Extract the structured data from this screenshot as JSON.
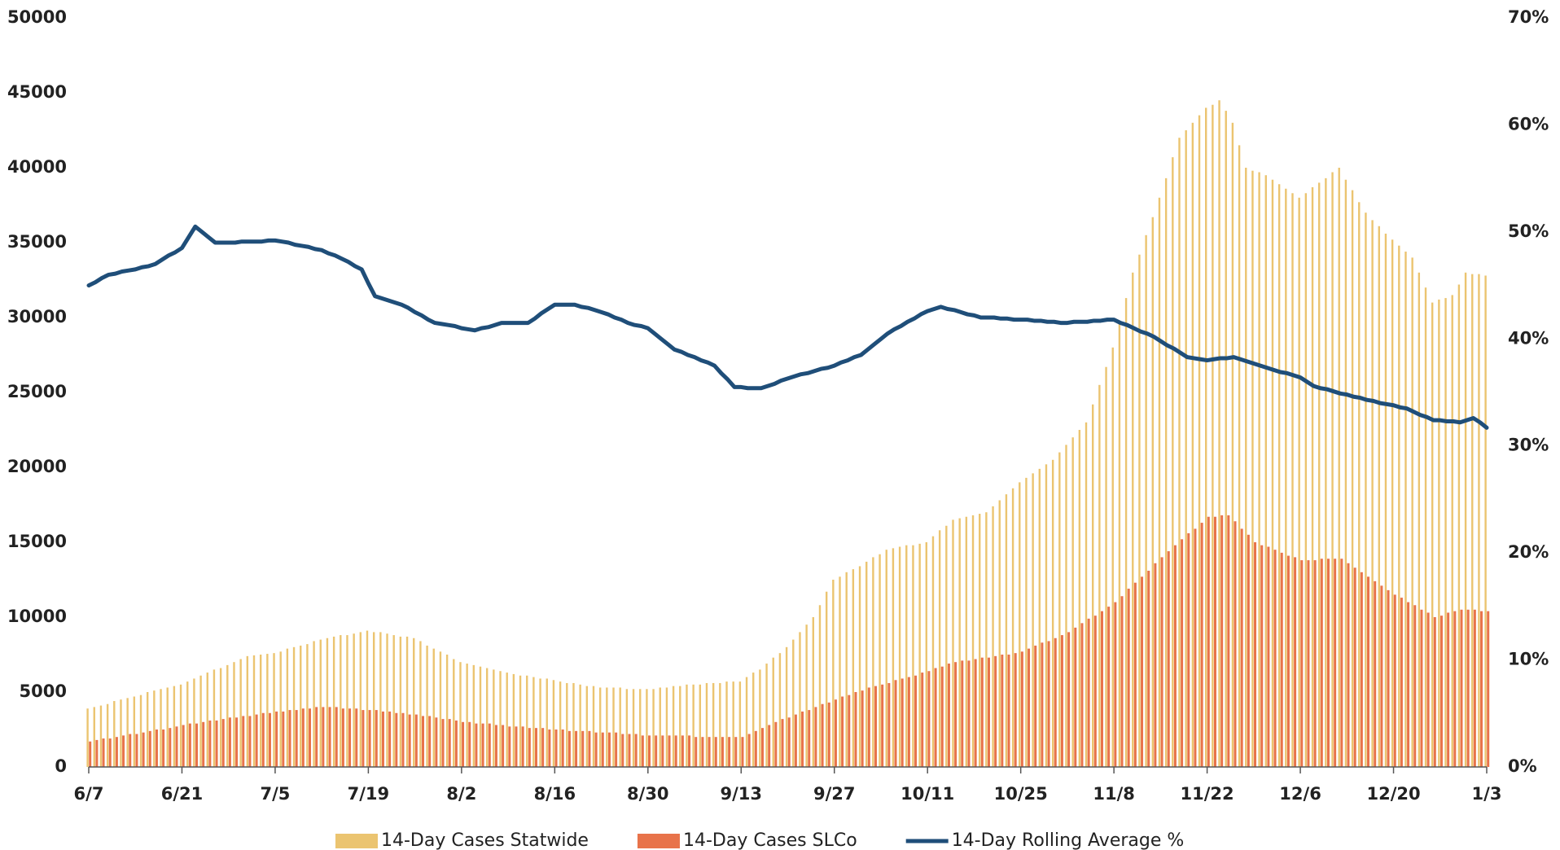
{
  "chart_data": {
    "type": "bar",
    "categories": [
      "6/7",
      null,
      null,
      null,
      null,
      null,
      null,
      null,
      null,
      null,
      null,
      null,
      null,
      null,
      "6/21",
      null,
      null,
      null,
      null,
      null,
      null,
      null,
      null,
      null,
      null,
      null,
      null,
      null,
      "7/5",
      null,
      null,
      null,
      null,
      null,
      null,
      null,
      null,
      null,
      null,
      null,
      null,
      null,
      "7/19",
      null,
      null,
      null,
      null,
      null,
      null,
      null,
      null,
      null,
      null,
      null,
      null,
      null,
      "8/2",
      null,
      null,
      null,
      null,
      null,
      null,
      null,
      null,
      null,
      null,
      null,
      null,
      null,
      "8/16",
      null,
      null,
      null,
      null,
      null,
      null,
      null,
      null,
      null,
      null,
      null,
      null,
      null,
      "8/30",
      null,
      null,
      null,
      null,
      null,
      null,
      null,
      null,
      null,
      null,
      null,
      null,
      null,
      "9/13",
      null,
      null,
      null,
      null,
      null,
      null,
      null,
      null,
      null,
      null,
      null,
      null,
      null,
      "9/27",
      null,
      null,
      null,
      null,
      null,
      null,
      null,
      null,
      null,
      null,
      null,
      null,
      null,
      "10/11",
      null,
      null,
      null,
      null,
      null,
      null,
      null,
      null,
      null,
      null,
      null,
      null,
      null,
      "10/25",
      null,
      null,
      null,
      null,
      null,
      null,
      null,
      null,
      null,
      null,
      null,
      null,
      null,
      "11/8",
      null,
      null,
      null,
      null,
      null,
      null,
      null,
      null,
      null,
      null,
      null,
      null,
      null,
      "11/22",
      null,
      null,
      null,
      null,
      null,
      null,
      null,
      null,
      null,
      null,
      null,
      null,
      null,
      "12/6",
      null,
      null,
      null,
      null,
      null,
      null,
      null,
      null,
      null,
      null,
      null,
      null,
      null,
      "12/20",
      null,
      null,
      null,
      null,
      null,
      null,
      null,
      null,
      null,
      null,
      null,
      null,
      null,
      "1/3"
    ],
    "series": [
      {
        "name": "14-Day Cases Statwide",
        "color": "#ebc470",
        "type": "bar",
        "values": [
          3900,
          4000,
          4100,
          4200,
          4400,
          4500,
          4600,
          4700,
          4800,
          5000,
          5100,
          5200,
          5300,
          5400,
          5500,
          5700,
          5900,
          6100,
          6300,
          6500,
          6600,
          6800,
          7000,
          7200,
          7400,
          7450,
          7500,
          7550,
          7600,
          7700,
          7900,
          8000,
          8100,
          8200,
          8400,
          8500,
          8600,
          8700,
          8800,
          8800,
          8900,
          9000,
          9100,
          9000,
          9000,
          8900,
          8800,
          8700,
          8700,
          8600,
          8400,
          8100,
          7900,
          7700,
          7500,
          7200,
          7000,
          6900,
          6800,
          6700,
          6600,
          6500,
          6400,
          6300,
          6200,
          6100,
          6100,
          6000,
          5900,
          5900,
          5800,
          5700,
          5600,
          5600,
          5500,
          5400,
          5400,
          5300,
          5300,
          5300,
          5300,
          5200,
          5200,
          5200,
          5200,
          5200,
          5300,
          5300,
          5400,
          5400,
          5500,
          5500,
          5500,
          5600,
          5600,
          5600,
          5700,
          5700,
          5700,
          6000,
          6300,
          6500,
          6900,
          7300,
          7600,
          8000,
          8500,
          9000,
          9500,
          10000,
          10800,
          11700,
          12500,
          12700,
          13000,
          13200,
          13400,
          13700,
          14000,
          14200,
          14500,
          14600,
          14700,
          14800,
          14800,
          14900,
          15000,
          15400,
          15800,
          16100,
          16500,
          16600,
          16700,
          16800,
          16900,
          17000,
          17400,
          17800,
          18200,
          18600,
          19000,
          19300,
          19600,
          19900,
          20200,
          20500,
          21000,
          21500,
          22000,
          22500,
          23000,
          24200,
          25500,
          26700,
          28000,
          29700,
          31300,
          33000,
          34200,
          35500,
          36700,
          38000,
          39300,
          40700,
          42000,
          42500,
          43000,
          43500,
          44000,
          44200,
          44500,
          43800,
          43000,
          41500,
          40000,
          39800,
          39700,
          39500,
          39200,
          38900,
          38600,
          38300,
          38000,
          38300,
          38700,
          39000,
          39300,
          39700,
          40000,
          39200,
          38500,
          37700,
          37000,
          36500,
          36100,
          35600,
          35200,
          34800,
          34400,
          34000,
          33000,
          32000,
          31000,
          31200,
          31300,
          31500,
          32200,
          33000,
          32900,
          32900,
          32800
        ]
      },
      {
        "name": "14-Day Cases SLCo",
        "color": "#e8734a",
        "type": "bar",
        "values": [
          1700,
          1800,
          1900,
          1900,
          2000,
          2100,
          2200,
          2200,
          2300,
          2400,
          2500,
          2500,
          2600,
          2700,
          2800,
          2900,
          2900,
          3000,
          3100,
          3100,
          3200,
          3300,
          3300,
          3400,
          3400,
          3500,
          3600,
          3600,
          3700,
          3700,
          3800,
          3800,
          3900,
          3900,
          4000,
          4000,
          4000,
          4000,
          3900,
          3900,
          3900,
          3800,
          3800,
          3800,
          3700,
          3700,
          3600,
          3600,
          3500,
          3500,
          3400,
          3400,
          3300,
          3200,
          3200,
          3100,
          3000,
          3000,
          2900,
          2900,
          2900,
          2800,
          2800,
          2700,
          2700,
          2700,
          2600,
          2600,
          2600,
          2500,
          2500,
          2500,
          2400,
          2400,
          2400,
          2400,
          2300,
          2300,
          2300,
          2300,
          2200,
          2200,
          2200,
          2100,
          2100,
          2100,
          2100,
          2100,
          2100,
          2100,
          2100,
          2000,
          2000,
          2000,
          2000,
          2000,
          2000,
          2000,
          2000,
          2200,
          2400,
          2600,
          2800,
          3000,
          3200,
          3300,
          3500,
          3700,
          3800,
          4000,
          4200,
          4300,
          4500,
          4700,
          4800,
          5000,
          5100,
          5300,
          5400,
          5500,
          5600,
          5800,
          5900,
          6000,
          6100,
          6300,
          6400,
          6600,
          6700,
          6900,
          7000,
          7100,
          7100,
          7200,
          7300,
          7300,
          7400,
          7500,
          7500,
          7600,
          7700,
          7900,
          8100,
          8300,
          8400,
          8600,
          8800,
          9000,
          9300,
          9600,
          9900,
          10100,
          10400,
          10700,
          11000,
          11400,
          11900,
          12300,
          12700,
          13100,
          13600,
          14000,
          14400,
          14800,
          15200,
          15600,
          15900,
          16300,
          16700,
          16700,
          16800,
          16800,
          16400,
          15900,
          15500,
          15000,
          14800,
          14700,
          14500,
          14300,
          14100,
          14000,
          13800,
          13800,
          13800,
          13900,
          13900,
          13900,
          13900,
          13600,
          13300,
          13000,
          12700,
          12400,
          12100,
          11800,
          11500,
          11300,
          11000,
          10800,
          10500,
          10300,
          10000,
          10100,
          10300,
          10400,
          10500,
          10500,
          10500,
          10400,
          10400
        ]
      },
      {
        "name": "14-Day Rolling Average %",
        "color": "#1f4e79",
        "type": "line",
        "axis": "y2",
        "values": [
          45,
          45.3,
          45.7,
          46,
          46.1,
          46.3,
          46.4,
          46.5,
          46.7,
          46.8,
          47,
          47.4,
          47.8,
          48.1,
          48.5,
          49.5,
          50.5,
          50,
          49.5,
          49,
          49,
          49,
          49,
          49.1,
          49.1,
          49.1,
          49.1,
          49.2,
          49.2,
          49.1,
          49,
          48.8,
          48.7,
          48.6,
          48.4,
          48.3,
          48,
          47.8,
          47.5,
          47.2,
          46.8,
          46.5,
          45.2,
          44,
          43.8,
          43.6,
          43.4,
          43.2,
          42.9,
          42.5,
          42.2,
          41.8,
          41.5,
          41.4,
          41.3,
          41.2,
          41,
          40.9,
          40.8,
          41,
          41.1,
          41.3,
          41.5,
          41.5,
          41.5,
          41.5,
          41.5,
          41.9,
          42.4,
          42.8,
          43.2,
          43.2,
          43.2,
          43.2,
          43,
          42.9,
          42.7,
          42.5,
          42.3,
          42,
          41.8,
          41.5,
          41.3,
          41.2,
          41,
          40.5,
          40,
          39.5,
          39,
          38.8,
          38.5,
          38.3,
          38,
          37.8,
          37.5,
          36.8,
          36.2,
          35.5,
          35.5,
          35.4,
          35.4,
          35.4,
          35.6,
          35.8,
          36.1,
          36.3,
          36.5,
          36.7,
          36.8,
          37,
          37.2,
          37.3,
          37.5,
          37.8,
          38,
          38.3,
          38.5,
          39,
          39.5,
          40,
          40.5,
          40.9,
          41.2,
          41.6,
          41.9,
          42.3,
          42.6,
          42.8,
          43,
          42.8,
          42.7,
          42.5,
          42.3,
          42.2,
          42,
          42,
          42,
          41.9,
          41.9,
          41.8,
          41.8,
          41.8,
          41.7,
          41.7,
          41.6,
          41.6,
          41.5,
          41.5,
          41.6,
          41.6,
          41.6,
          41.7,
          41.7,
          41.8,
          41.8,
          41.5,
          41.3,
          41,
          40.7,
          40.5,
          40.2,
          39.8,
          39.4,
          39.1,
          38.7,
          38.3,
          38.2,
          38.1,
          38,
          38.1,
          38.2,
          38.2,
          38.3,
          38.1,
          37.9,
          37.7,
          37.5,
          37.3,
          37.1,
          36.9,
          36.8,
          36.6,
          36.4,
          36,
          35.6,
          35.4,
          35.3,
          35.1,
          34.9,
          34.8,
          34.6,
          34.5,
          34.3,
          34.2,
          34,
          33.9,
          33.8,
          33.6,
          33.5,
          33.2,
          32.9,
          32.7,
          32.4,
          32.4,
          32.3,
          32.3,
          32.2,
          32.4,
          32.6,
          32.2,
          31.7
        ]
      }
    ],
    "ylim": [
      0,
      50000
    ],
    "yticks": [
      0,
      5000,
      10000,
      15000,
      20000,
      25000,
      30000,
      35000,
      40000,
      45000,
      50000
    ],
    "y2lim": [
      0,
      70
    ],
    "y2ticks": [
      {
        "value": 0,
        "label": "0%"
      },
      {
        "value": 10,
        "label": "10%"
      },
      {
        "value": 20,
        "label": "20%"
      },
      {
        "value": 30,
        "label": "30%"
      },
      {
        "value": 40,
        "label": "40%"
      },
      {
        "value": 50,
        "label": "50%"
      },
      {
        "value": 60,
        "label": "60%"
      },
      {
        "value": 70,
        "label": "70%"
      }
    ],
    "grid": false,
    "legend": "bottom"
  }
}
